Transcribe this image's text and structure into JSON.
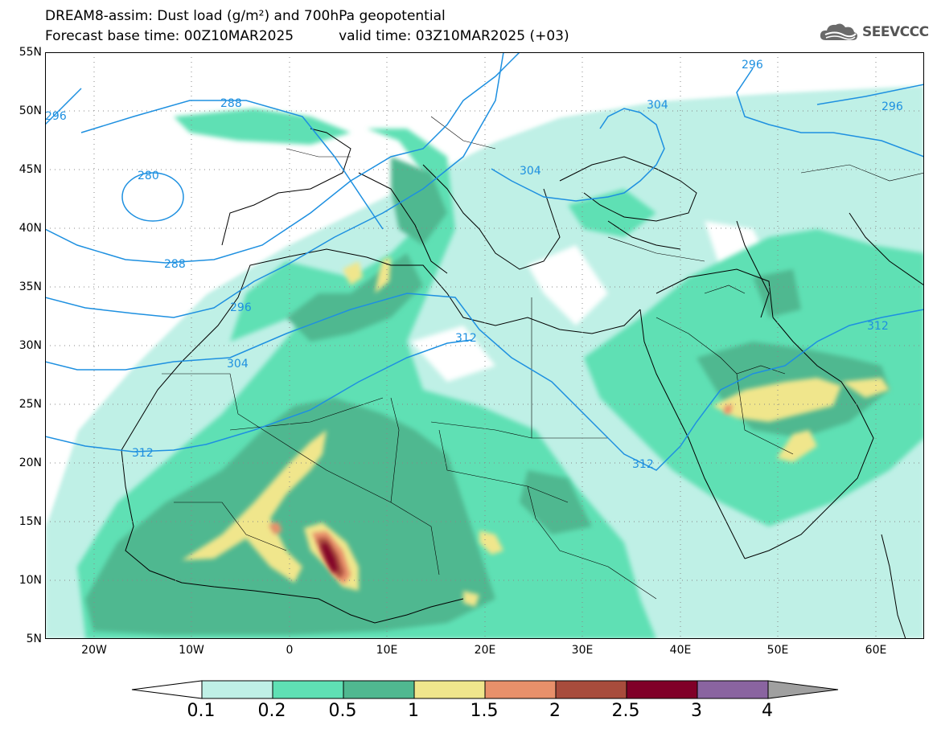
{
  "title": {
    "line1": "DREAM8-assim: Dust load (g/m²) and 700hPa geopotential",
    "base": "Forecast base time: 00Z10MAR2025",
    "valid": "valid time: 03Z10MAR2025 (+03)"
  },
  "logo": {
    "text": "SEEVCCC",
    "icon": "cloud-logo-icon"
  },
  "map": {
    "lon_range": [
      -25,
      65
    ],
    "lat_range": [
      5,
      55
    ],
    "lat_labels": [
      "55N",
      "50N",
      "45N",
      "40N",
      "35N",
      "30N",
      "25N",
      "20N",
      "15N",
      "10N",
      "5N"
    ],
    "lon_labels": [
      "20W",
      "10W",
      "0",
      "10E",
      "20E",
      "30E",
      "40E",
      "50E",
      "60E"
    ],
    "contour_labels": [
      "296",
      "288",
      "280",
      "288",
      "296",
      "304",
      "312",
      "304",
      "304",
      "296",
      "296",
      "312",
      "312",
      "312"
    ],
    "contour_color": "#1e90e0",
    "grid": "dotted"
  },
  "colorbar": {
    "labels": [
      "0.1",
      "0.2",
      "0.5",
      "1",
      "1.5",
      "2",
      "2.5",
      "3",
      "4"
    ],
    "colors": [
      "#ffffff",
      "#bff0e6",
      "#5fe0b4",
      "#50b890",
      "#f0e68c",
      "#e8906a",
      "#a84c3c",
      "#800028",
      "#8a64a0",
      "#a0a0a0"
    ]
  }
}
